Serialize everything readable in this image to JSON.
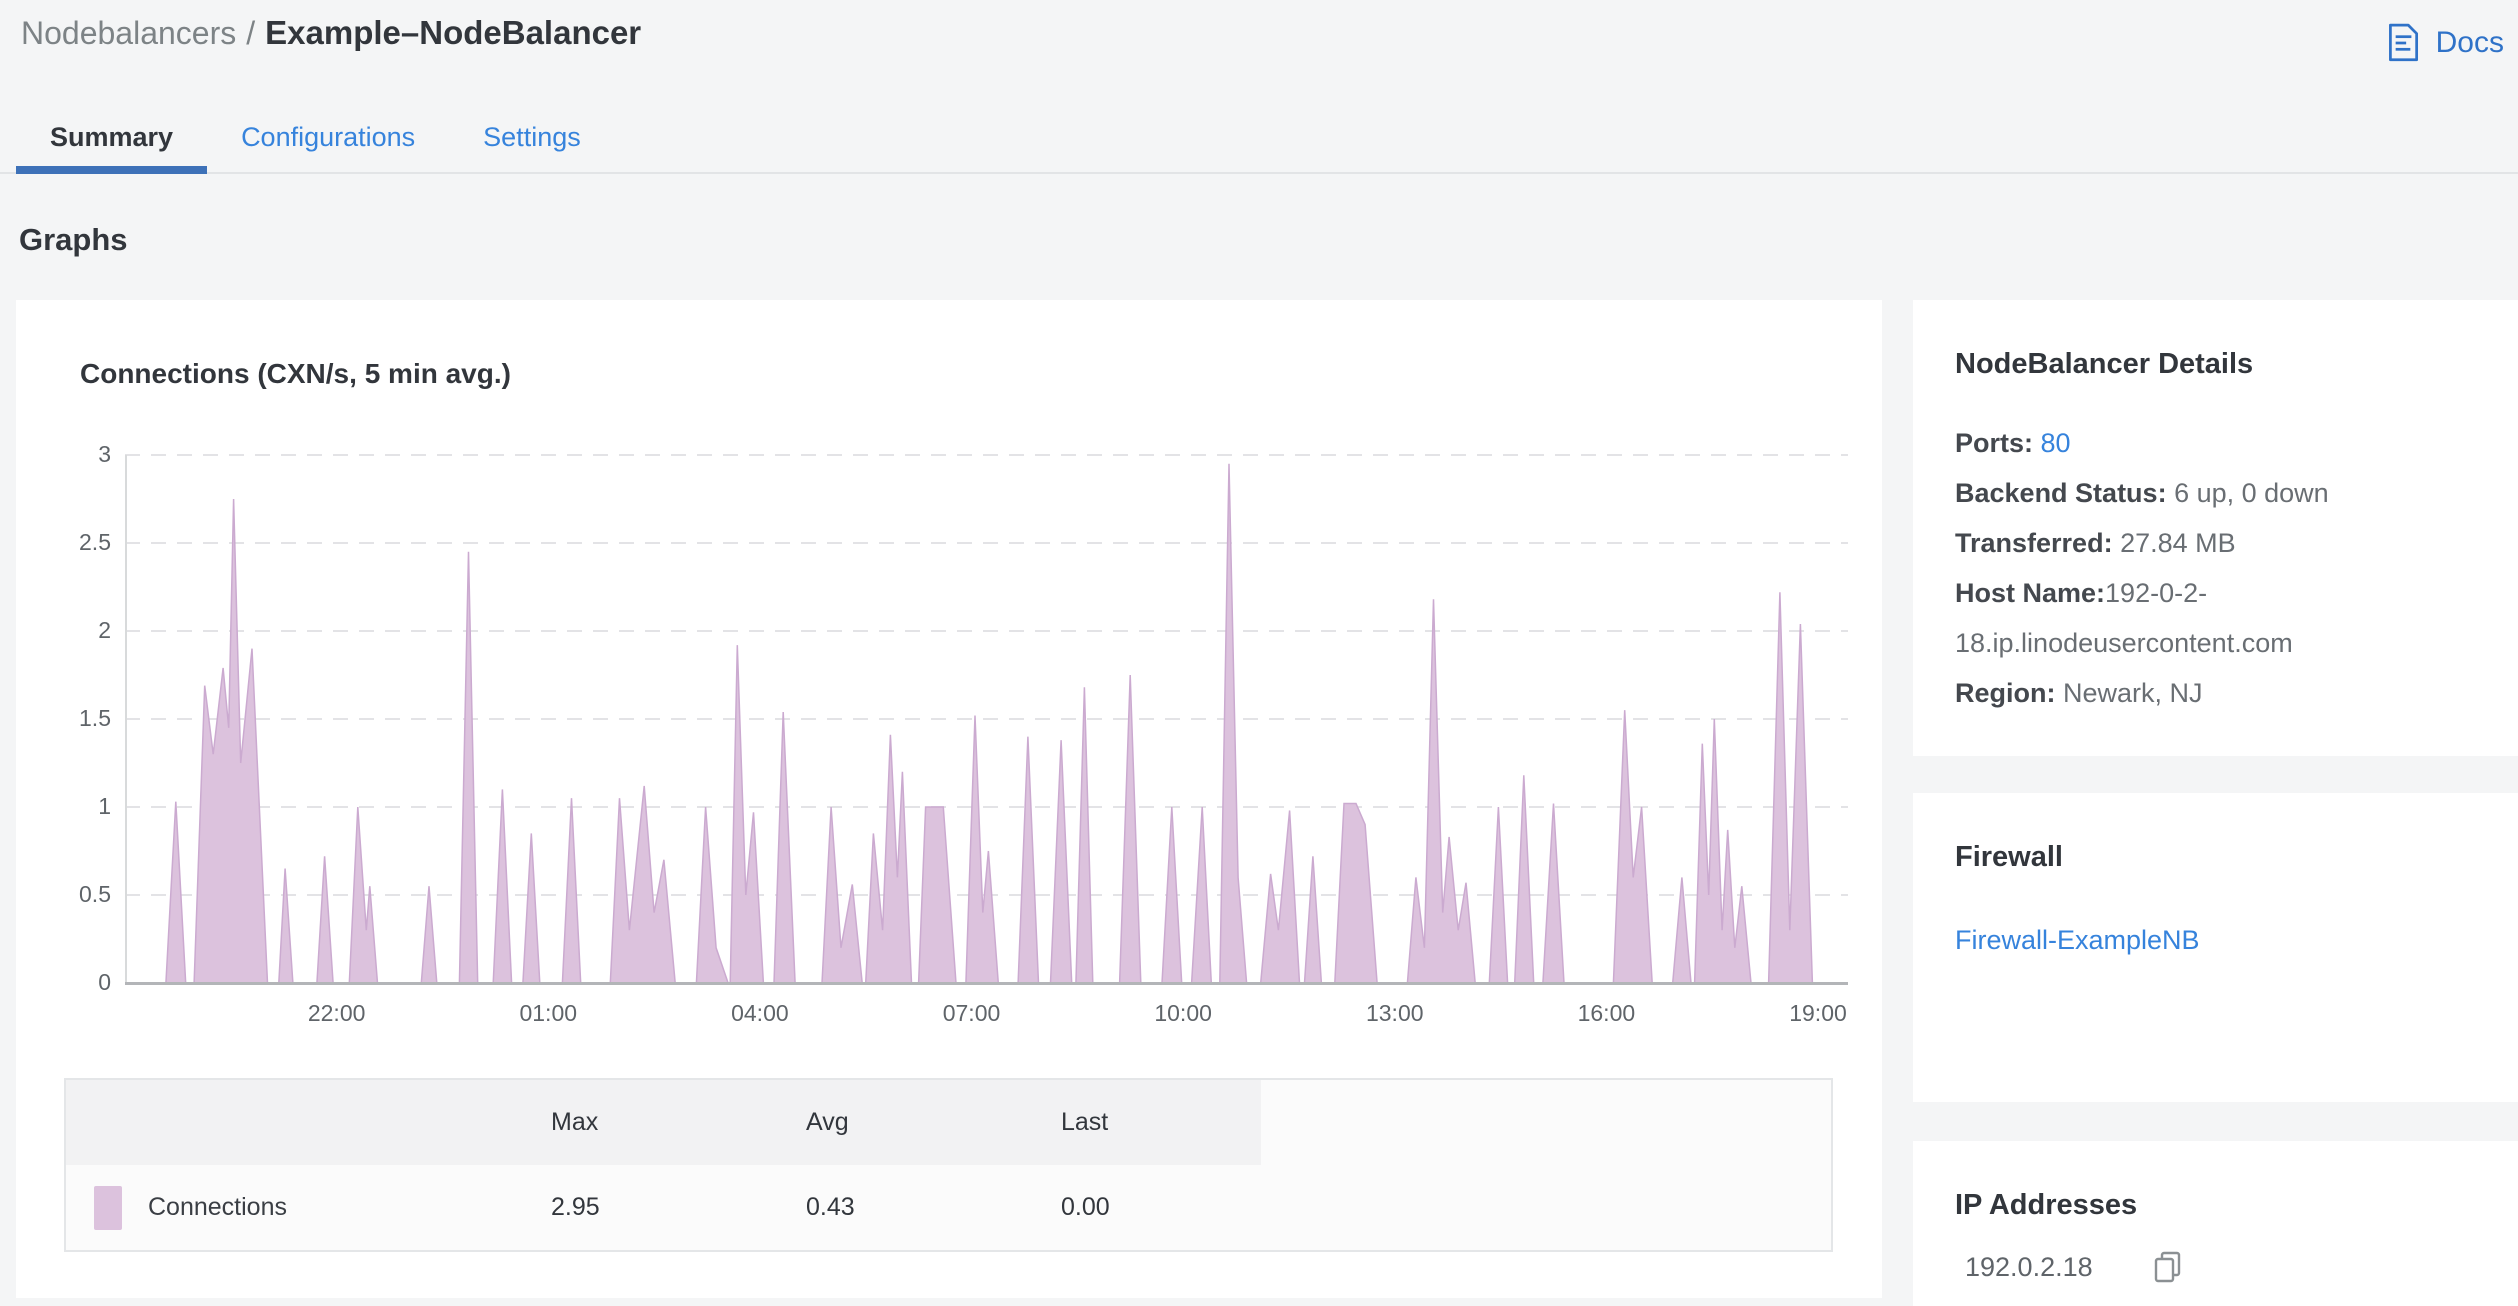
{
  "header": {
    "breadcrumb": {
      "section": "Nodebalancers",
      "separator": "/",
      "current": "Example–NodeBalancer"
    },
    "docs": {
      "label": "Docs"
    }
  },
  "tabs": {
    "summary": "Summary",
    "configurations": "Configurations",
    "settings": "Settings",
    "active_tab": "Summary"
  },
  "section_title": "Graphs",
  "chart_data": {
    "type": "area",
    "title": "Connections (CXN/s, 5 min avg.)",
    "xlabel": "",
    "ylabel": "",
    "ylim": [
      0,
      3
    ],
    "y_ticks": [
      0,
      0.5,
      1,
      1.5,
      2,
      2.5,
      3
    ],
    "x_span_hours": 24,
    "x_ticks": [
      {
        "label": "22:00",
        "hour": 3
      },
      {
        "label": "01:00",
        "hour": 6
      },
      {
        "label": "04:00",
        "hour": 9
      },
      {
        "label": "07:00",
        "hour": 12
      },
      {
        "label": "10:00",
        "hour": 15
      },
      {
        "label": "13:00",
        "hour": 18
      },
      {
        "label": "16:00",
        "hour": 21
      },
      {
        "label": "19:00",
        "hour": 24
      }
    ],
    "grid": "dashed horizontal gridlines",
    "legend_position": "bottom table",
    "series": [
      {
        "name": "Connections",
        "fill_color": "#dcc2dd",
        "stroke_color": "#cbaad0",
        "points": [
          [
            0,
            0
          ],
          [
            0.58,
            0
          ],
          [
            0.72,
            1.03
          ],
          [
            0.86,
            0
          ],
          [
            0.98,
            0
          ],
          [
            1.13,
            1.69
          ],
          [
            1.25,
            1.3
          ],
          [
            1.39,
            1.79
          ],
          [
            1.47,
            1.45
          ],
          [
            1.54,
            2.75
          ],
          [
            1.64,
            1.25
          ],
          [
            1.8,
            1.9
          ],
          [
            2.02,
            0
          ],
          [
            2.18,
            0
          ],
          [
            2.27,
            0.65
          ],
          [
            2.38,
            0
          ],
          [
            2.72,
            0
          ],
          [
            2.83,
            0.72
          ],
          [
            2.95,
            0
          ],
          [
            3.18,
            0
          ],
          [
            3.3,
            1.0
          ],
          [
            3.42,
            0.3
          ],
          [
            3.47,
            0.55
          ],
          [
            3.58,
            0
          ],
          [
            4.2,
            0
          ],
          [
            4.31,
            0.55
          ],
          [
            4.42,
            0
          ],
          [
            4.74,
            0
          ],
          [
            4.87,
            2.45
          ],
          [
            5.0,
            0
          ],
          [
            5.22,
            0
          ],
          [
            5.35,
            1.1
          ],
          [
            5.48,
            0
          ],
          [
            5.64,
            0
          ],
          [
            5.76,
            0.85
          ],
          [
            5.88,
            0
          ],
          [
            6.2,
            0
          ],
          [
            6.33,
            1.05
          ],
          [
            6.46,
            0
          ],
          [
            6.88,
            0
          ],
          [
            7.01,
            1.05
          ],
          [
            7.15,
            0.3
          ],
          [
            7.36,
            1.12
          ],
          [
            7.5,
            0.4
          ],
          [
            7.64,
            0.7
          ],
          [
            7.8,
            0
          ],
          [
            8.1,
            0
          ],
          [
            8.23,
            1.0
          ],
          [
            8.38,
            0.2
          ],
          [
            8.55,
            0
          ],
          [
            8.58,
            0
          ],
          [
            8.68,
            1.92
          ],
          [
            8.8,
            0.5
          ],
          [
            8.91,
            0.97
          ],
          [
            9.05,
            0
          ],
          [
            9.2,
            0
          ],
          [
            9.33,
            1.54
          ],
          [
            9.5,
            0
          ],
          [
            9.88,
            0
          ],
          [
            10.01,
            1.0
          ],
          [
            10.15,
            0.2
          ],
          [
            10.31,
            0.56
          ],
          [
            10.45,
            0
          ],
          [
            10.5,
            0
          ],
          [
            10.61,
            0.85
          ],
          [
            10.74,
            0.3
          ],
          [
            10.85,
            1.41
          ],
          [
            10.95,
            0.6
          ],
          [
            11.02,
            1.2
          ],
          [
            11.15,
            0
          ],
          [
            11.25,
            0
          ],
          [
            11.35,
            1.0
          ],
          [
            11.6,
            1.0
          ],
          [
            11.78,
            0
          ],
          [
            11.92,
            0
          ],
          [
            12.05,
            1.52
          ],
          [
            12.16,
            0.4
          ],
          [
            12.24,
            0.75
          ],
          [
            12.38,
            0
          ],
          [
            12.66,
            0
          ],
          [
            12.8,
            1.4
          ],
          [
            12.95,
            0
          ],
          [
            13.12,
            0
          ],
          [
            13.27,
            1.38
          ],
          [
            13.42,
            0
          ],
          [
            13.48,
            0
          ],
          [
            13.6,
            1.68
          ],
          [
            13.72,
            0
          ],
          [
            14.1,
            0
          ],
          [
            14.25,
            1.75
          ],
          [
            14.4,
            0
          ],
          [
            14.7,
            0
          ],
          [
            14.84,
            1.0
          ],
          [
            14.98,
            0
          ],
          [
            15.12,
            0
          ],
          [
            15.27,
            1.0
          ],
          [
            15.4,
            0
          ],
          [
            15.52,
            0
          ],
          [
            15.65,
            2.95
          ],
          [
            15.78,
            0.6
          ],
          [
            15.9,
            0
          ],
          [
            16.1,
            0
          ],
          [
            16.24,
            0.62
          ],
          [
            16.35,
            0.3
          ],
          [
            16.51,
            0.98
          ],
          [
            16.65,
            0
          ],
          [
            16.72,
            0
          ],
          [
            16.84,
            0.72
          ],
          [
            16.96,
            0
          ],
          [
            17.15,
            0
          ],
          [
            17.28,
            1.02
          ],
          [
            17.45,
            1.02
          ],
          [
            17.58,
            0.9
          ],
          [
            17.75,
            0
          ],
          [
            18.18,
            0
          ],
          [
            18.3,
            0.6
          ],
          [
            18.42,
            0.2
          ],
          [
            18.55,
            2.18
          ],
          [
            18.68,
            0.4
          ],
          [
            18.77,
            0.83
          ],
          [
            18.9,
            0.3
          ],
          [
            19.01,
            0.57
          ],
          [
            19.14,
            0
          ],
          [
            19.34,
            0
          ],
          [
            19.47,
            1.0
          ],
          [
            19.6,
            0
          ],
          [
            19.7,
            0
          ],
          [
            19.83,
            1.18
          ],
          [
            19.97,
            0
          ],
          [
            20.1,
            0
          ],
          [
            20.25,
            1.02
          ],
          [
            20.4,
            0
          ],
          [
            21.1,
            0
          ],
          [
            21.26,
            1.55
          ],
          [
            21.38,
            0.6
          ],
          [
            21.5,
            1.0
          ],
          [
            21.65,
            0
          ],
          [
            21.94,
            0
          ],
          [
            22.07,
            0.6
          ],
          [
            22.2,
            0
          ],
          [
            22.25,
            0
          ],
          [
            22.36,
            1.36
          ],
          [
            22.45,
            0.5
          ],
          [
            22.53,
            1.5
          ],
          [
            22.64,
            0.3
          ],
          [
            22.72,
            0.87
          ],
          [
            22.82,
            0.2
          ],
          [
            22.92,
            0.55
          ],
          [
            23.05,
            0
          ],
          [
            23.3,
            0
          ],
          [
            23.46,
            2.22
          ],
          [
            23.6,
            0.3
          ],
          [
            23.75,
            2.04
          ],
          [
            23.92,
            0
          ],
          [
            24,
            0
          ]
        ]
      }
    ],
    "legend": {
      "columns": [
        "Max",
        "Avg",
        "Last"
      ],
      "rows": [
        {
          "name": "Connections",
          "max": "2.95",
          "avg": "0.43",
          "last": "0.00"
        }
      ]
    }
  },
  "details": {
    "title": "NodeBalancer Details",
    "ports_label": "Ports:",
    "ports_value": "80",
    "backend_label": "Backend Status:",
    "backend_value": "6 up, 0 down",
    "transferred_label": "Transferred:",
    "transferred_value": "27.84 MB",
    "host_label": "Host Name:",
    "host_value": "192-0-2-18.ip.linodeusercontent.com",
    "region_label": "Region:",
    "region_value": "Newark, NJ"
  },
  "firewall": {
    "title": "Firewall",
    "link": "Firewall-ExampleNB"
  },
  "ip_addresses": {
    "title": "IP Addresses",
    "address": "192.0.2.18"
  },
  "colors": {
    "page_bg": "#f4f5f6",
    "panel_bg": "#ffffff",
    "accent_blue": "#3683dc",
    "tab_underline": "#3d71b8",
    "text_dark": "#32363c",
    "text_gray": "#5f6469",
    "area_fill": "#dcc2dd",
    "area_stroke": "#cbaad0",
    "gridline": "#e3e3e6"
  }
}
